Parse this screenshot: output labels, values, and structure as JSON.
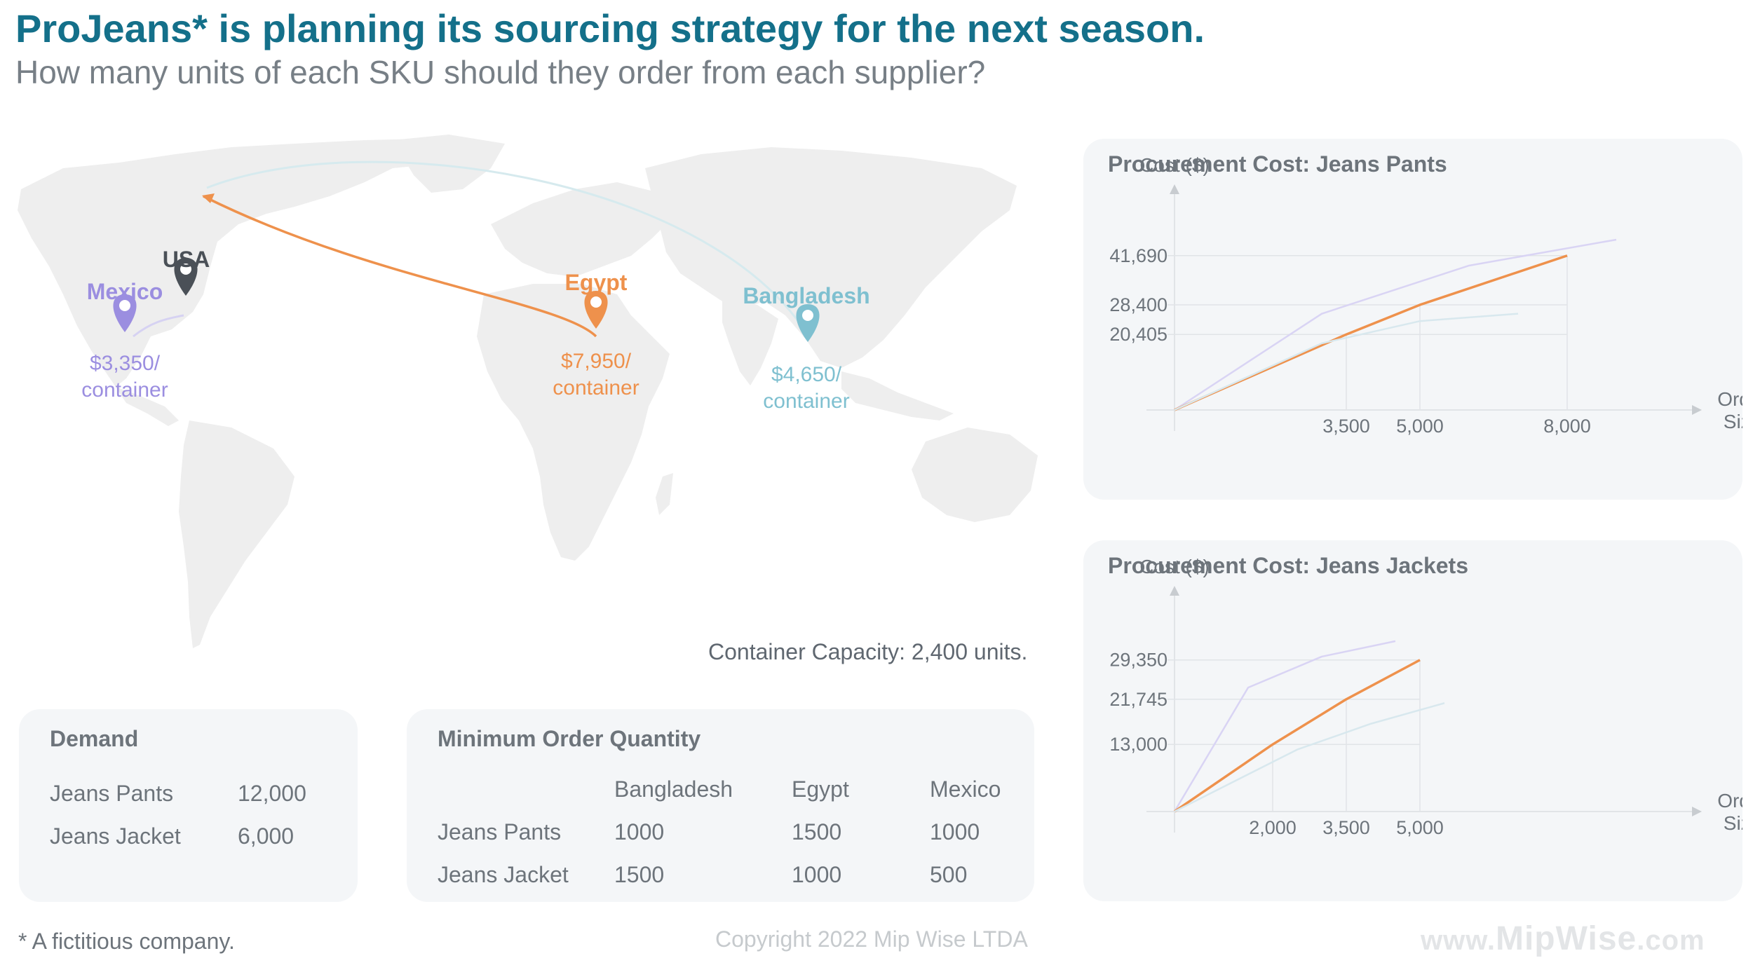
{
  "title": "ProJeans* is planning its sourcing strategy for the next season.",
  "subtitle": "How many units of each SKU should they order from each supplier?",
  "colors": {
    "title": "#14708a",
    "mexico": "#9b8ee0",
    "usa": "#4a5057",
    "egypt": "#ee914c",
    "bangladesh": "#7fc0d0",
    "panel_bg": "#f4f6f8"
  },
  "map": {
    "locations": {
      "usa": {
        "name": "USA",
        "icon": "map-pin-icon"
      },
      "mexico": {
        "name": "Mexico",
        "cost_line1": "$3,350/",
        "cost_line2": "container",
        "icon": "map-pin-icon"
      },
      "egypt": {
        "name": "Egypt",
        "cost_line1": "$7,950/",
        "cost_line2": "container",
        "icon": "map-pin-icon"
      },
      "bangladesh": {
        "name": "Bangladesh",
        "cost_line1": "$4,650/",
        "cost_line2": "container",
        "icon": "map-pin-icon"
      }
    },
    "capacity_note": "Container Capacity: 2,400 units."
  },
  "demand": {
    "title": "Demand",
    "rows": [
      {
        "label": "Jeans Pants",
        "value": "12,000"
      },
      {
        "label": "Jeans Jacket",
        "value": "6,000"
      }
    ]
  },
  "moq": {
    "title": "Minimum Order Quantity",
    "columns": [
      "Bangladesh",
      "Egypt",
      "Mexico"
    ],
    "rows": [
      {
        "label": "Jeans Pants",
        "values": [
          "1000",
          "1500",
          "1000"
        ]
      },
      {
        "label": "Jeans Jacket",
        "values": [
          "1500",
          "1000",
          "500"
        ]
      }
    ]
  },
  "chart_data": [
    {
      "type": "line",
      "title": "Procurement Cost: Jeans Pants",
      "ylabel": "Cost ($)",
      "xlabel_line1": "Order",
      "xlabel_line2": "Size",
      "xlim": [
        0,
        10000
      ],
      "ylim": [
        0,
        53000
      ],
      "xticks": [
        3500,
        5000,
        8000
      ],
      "xtick_labels": [
        "3,500",
        "5,000",
        "8,000"
      ],
      "yticks": [
        20405,
        28400,
        41690
      ],
      "ytick_labels": [
        "20,405",
        "28,400",
        "41,690"
      ],
      "series": [
        {
          "color": "#d9d4f4",
          "points": [
            [
              0,
              0
            ],
            [
              3000,
              26000
            ],
            [
              6000,
              39000
            ],
            [
              9000,
              46000
            ]
          ]
        },
        {
          "color": "#ee914c",
          "points": [
            [
              0,
              0
            ],
            [
              3500,
              20405
            ],
            [
              5000,
              28400
            ],
            [
              8000,
              41690
            ]
          ]
        },
        {
          "color": "#d8e8ee",
          "points": [
            [
              0,
              0
            ],
            [
              3000,
              18000
            ],
            [
              5000,
              24000
            ],
            [
              7000,
              26000
            ]
          ]
        }
      ]
    },
    {
      "type": "line",
      "title": "Procurement Cost: Jeans Jackets",
      "ylabel": "Cost ($)",
      "xlabel_line1": "Order",
      "xlabel_line2": "Size",
      "xlim": [
        0,
        10000
      ],
      "ylim": [
        0,
        38000
      ],
      "xticks": [
        2000,
        3500,
        5000
      ],
      "xtick_labels": [
        "2,000",
        "3,500",
        "5,000"
      ],
      "yticks": [
        13000,
        21745,
        29350
      ],
      "ytick_labels": [
        "13,000",
        "21,745",
        "29,350"
      ],
      "series": [
        {
          "color": "#d9d4f4",
          "points": [
            [
              0,
              0
            ],
            [
              1500,
              24000
            ],
            [
              3000,
              30000
            ],
            [
              4500,
              33000
            ]
          ]
        },
        {
          "color": "#ee914c",
          "points": [
            [
              0,
              0
            ],
            [
              2000,
              13000
            ],
            [
              3500,
              21745
            ],
            [
              5000,
              29350
            ]
          ]
        },
        {
          "color": "#d8e8ee",
          "points": [
            [
              0,
              0
            ],
            [
              2500,
              12000
            ],
            [
              4000,
              17000
            ],
            [
              5500,
              21000
            ]
          ]
        }
      ]
    }
  ],
  "footnote": "* A fictitious company.",
  "copyright": "Copyright 2022 Mip Wise LTDA",
  "brand": {
    "prefix": "www.",
    "name": "MipWise",
    "suffix": ".com"
  }
}
